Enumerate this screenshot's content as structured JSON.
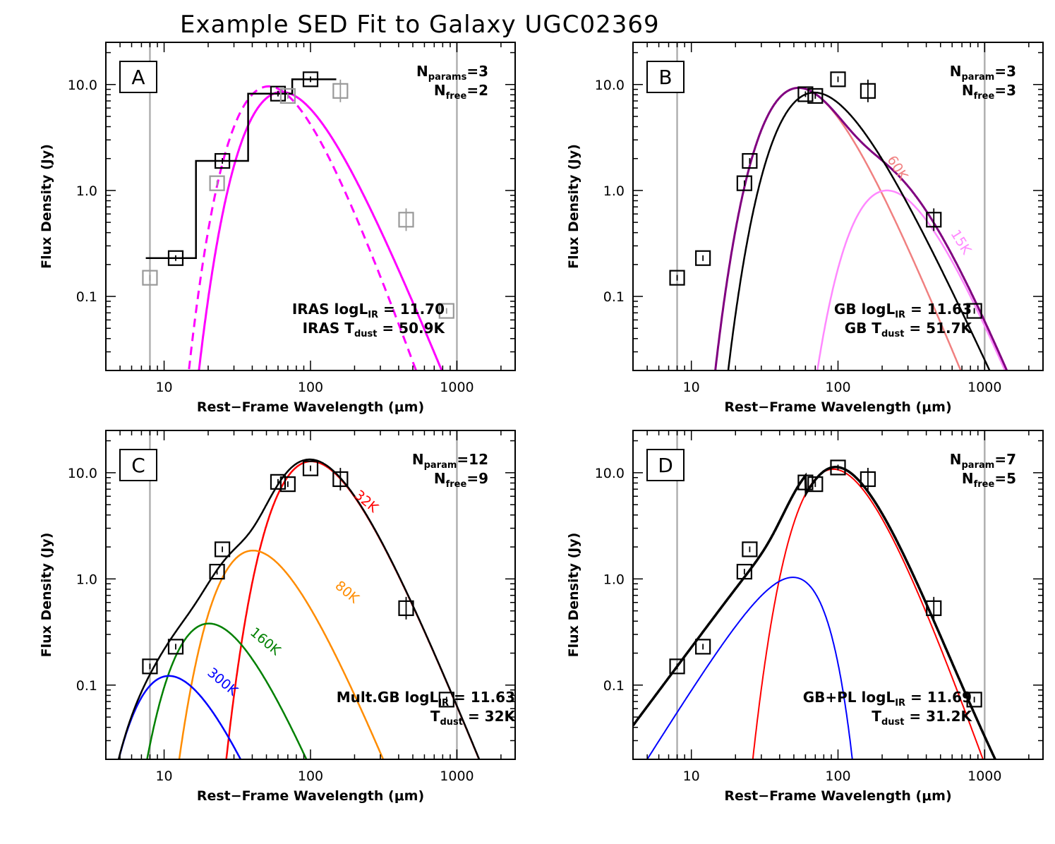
{
  "title": "Example SED Fit to Galaxy UGC02369",
  "chart_data": [
    {
      "type": "line",
      "panel": "A",
      "xlabel": "Rest−Frame Wavelength (μm)",
      "ylabel": "Flux Density (Jy)",
      "xscale": "log",
      "yscale": "log",
      "xlim": [
        4,
        2500
      ],
      "ylim": [
        0.02,
        25
      ],
      "xticks": [
        10,
        100,
        1000
      ],
      "xtick_labels": [
        "10",
        "100",
        "1000"
      ],
      "yticks": [
        0.1,
        1.0,
        10.0
      ],
      "ytick_labels": [
        "0.1",
        "1.0",
        "10.0"
      ],
      "vlines": [
        8,
        1000
      ],
      "params": {
        "n_label": "N",
        "n_sub": "params",
        "n_val": "=3",
        "f_label": "N",
        "f_sub": "free",
        "f_val": "=2"
      },
      "annotation": [
        {
          "pre": "IRAS logL",
          "sub": "IR",
          "post": " = 11.70"
        },
        {
          "pre": "IRAS T",
          "sub": "dust",
          "post": " = 50.9K"
        }
      ],
      "points": [
        {
          "x": 8,
          "y": 0.15,
          "color": "#999999"
        },
        {
          "x": 12,
          "y": 0.23,
          "color": "#000000"
        },
        {
          "x": 23,
          "y": 1.17,
          "color": "#999999"
        },
        {
          "x": 25,
          "y": 1.9,
          "color": "#000000"
        },
        {
          "x": 60,
          "y": 8.2,
          "color": "#000000"
        },
        {
          "x": 70,
          "y": 7.8,
          "color": "#999999"
        },
        {
          "x": 100,
          "y": 11.2,
          "color": "#000000"
        },
        {
          "x": 160,
          "y": 8.7,
          "color": "#999999"
        },
        {
          "x": 450,
          "y": 0.53,
          "color": "#999999"
        },
        {
          "x": 850,
          "y": 0.073,
          "color": "#999999"
        }
      ],
      "step": [
        [
          7.5,
          0.23
        ],
        [
          16.5,
          0.23
        ],
        [
          16.5,
          1.9
        ],
        [
          37.5,
          1.9
        ],
        [
          37.5,
          8.2
        ],
        [
          75,
          8.2
        ],
        [
          75,
          11.2
        ],
        [
          150,
          11.2
        ]
      ],
      "curves": [
        {
          "kind": "gb",
          "T": 50.9,
          "beta": 1.5,
          "peak": 8.5,
          "color": "#ff00ff",
          "dash": false,
          "width": 3
        },
        {
          "kind": "gb",
          "T": 56,
          "beta": 2.0,
          "peak": 9.6,
          "color": "#ff00ff",
          "dash": true,
          "width": 3
        }
      ],
      "curve_labels": []
    },
    {
      "type": "line",
      "panel": "B",
      "xlabel": "Rest−Frame Wavelength (μm)",
      "ylabel": "Flux Density (Jy)",
      "xscale": "log",
      "yscale": "log",
      "xlim": [
        4,
        2500
      ],
      "ylim": [
        0.02,
        25
      ],
      "xticks": [
        10,
        100,
        1000
      ],
      "xtick_labels": [
        "10",
        "100",
        "1000"
      ],
      "yticks": [
        0.1,
        1.0,
        10.0
      ],
      "ytick_labels": [
        "0.1",
        "1.0",
        "10.0"
      ],
      "vlines": [
        8,
        1000
      ],
      "params": {
        "n_label": "N",
        "n_sub": "param",
        "n_val": "=3",
        "f_label": "N",
        "f_sub": "free",
        "f_val": "=3"
      },
      "annotation": [
        {
          "pre": "GB logL",
          "sub": "IR",
          "post": " = 11.63"
        },
        {
          "pre": "GB T",
          "sub": "dust",
          "post": " = 51.7K"
        }
      ],
      "points": [
        {
          "x": 8,
          "y": 0.15,
          "color": "#000000"
        },
        {
          "x": 12,
          "y": 0.23,
          "color": "#000000"
        },
        {
          "x": 23,
          "y": 1.17,
          "color": "#000000"
        },
        {
          "x": 25,
          "y": 1.9,
          "color": "#000000"
        },
        {
          "x": 60,
          "y": 8.1,
          "color": "#000000"
        },
        {
          "x": 70,
          "y": 7.8,
          "color": "#000000"
        },
        {
          "x": 100,
          "y": 11.2,
          "color": "#000000"
        },
        {
          "x": 160,
          "y": 8.7,
          "color": "#000000"
        },
        {
          "x": 450,
          "y": 0.53,
          "color": "#000000"
        },
        {
          "x": 850,
          "y": 0.073,
          "color": "#000000"
        }
      ],
      "step": [],
      "curves": [
        {
          "kind": "gb",
          "T": 60,
          "beta": 1.5,
          "peak": 9.3,
          "color": "#f08080",
          "dash": false,
          "width": 2.5
        },
        {
          "kind": "gb",
          "T": 15,
          "beta": 1.5,
          "peak": 1.0,
          "color": "#ff88ff",
          "dash": false,
          "width": 2.5
        },
        {
          "kind": "sum",
          "of": [
            0,
            1
          ],
          "color": "#800080",
          "dash": false,
          "width": 3
        },
        {
          "kind": "gb",
          "T": 51.7,
          "beta": 1.1,
          "peak": 8.4,
          "color": "#000000",
          "dash": false,
          "width": 2.5
        }
      ],
      "curve_labels": [
        {
          "text": "60K",
          "x": 240,
          "y": 1.55,
          "color": "#f08080",
          "rotate": 58
        },
        {
          "text": "15K",
          "x": 650,
          "y": 0.31,
          "color": "#ff88ff",
          "rotate": 58
        }
      ]
    },
    {
      "type": "line",
      "panel": "C",
      "xlabel": "Rest−Frame Wavelength (μm)",
      "ylabel": "Flux Density (Jy)",
      "xscale": "log",
      "yscale": "log",
      "xlim": [
        4,
        2500
      ],
      "ylim": [
        0.02,
        25
      ],
      "xticks": [
        10,
        100,
        1000
      ],
      "xtick_labels": [
        "10",
        "100",
        "1000"
      ],
      "yticks": [
        0.1,
        1.0,
        10.0
      ],
      "ytick_labels": [
        "0.1",
        "1.0",
        "10.0"
      ],
      "vlines": [
        8,
        1000
      ],
      "params": {
        "n_label": "N",
        "n_sub": "param",
        "n_val": "=12",
        "f_label": "N",
        "f_sub": "free",
        "f_val": "=9"
      },
      "annotation": [
        {
          "pre": "Mult.GB logL",
          "sub": "IR",
          "post": " = 11.63"
        },
        {
          "pre": "T",
          "sub": "dust",
          "post": " = 32K"
        }
      ],
      "points": [
        {
          "x": 8,
          "y": 0.15,
          "color": "#000000"
        },
        {
          "x": 12,
          "y": 0.23,
          "color": "#000000"
        },
        {
          "x": 23,
          "y": 1.17,
          "color": "#000000"
        },
        {
          "x": 25,
          "y": 1.9,
          "color": "#000000"
        },
        {
          "x": 60,
          "y": 8.2,
          "color": "#000000"
        },
        {
          "x": 70,
          "y": 7.8,
          "color": "#000000"
        },
        {
          "x": 100,
          "y": 11.0,
          "color": "#000000"
        },
        {
          "x": 160,
          "y": 8.7,
          "color": "#000000"
        },
        {
          "x": 450,
          "y": 0.53,
          "color": "#000000"
        },
        {
          "x": 850,
          "y": 0.073,
          "color": "#000000"
        }
      ],
      "step": [],
      "curves": [
        {
          "kind": "gb",
          "T": 32,
          "beta": 1.5,
          "peak": 12.8,
          "color": "#ff0000",
          "dash": false,
          "width": 2.5
        },
        {
          "kind": "gb",
          "T": 80,
          "beta": 1.5,
          "peak": 1.85,
          "color": "#ff8c00",
          "dash": false,
          "width": 2.5
        },
        {
          "kind": "gb",
          "T": 160,
          "beta": 1.5,
          "peak": 0.38,
          "color": "#008000",
          "dash": false,
          "width": 2.5
        },
        {
          "kind": "gb",
          "T": 300,
          "beta": 1.5,
          "peak": 0.122,
          "color": "#0000ff",
          "dash": false,
          "width": 2.5
        },
        {
          "kind": "sum",
          "of": [
            0,
            1,
            2,
            3
          ],
          "color": "#000000",
          "dash": false,
          "width": 2.5
        }
      ],
      "curve_labels": [
        {
          "text": "32K",
          "x": 230,
          "y": 5.0,
          "color": "#ff0000",
          "rotate": 40
        },
        {
          "text": "80K",
          "x": 170,
          "y": 0.7,
          "color": "#ff8c00",
          "rotate": 40
        },
        {
          "text": "160K",
          "x": 47,
          "y": 0.24,
          "color": "#008000",
          "rotate": 40
        },
        {
          "text": "300K",
          "x": 24,
          "y": 0.1,
          "color": "#0000ff",
          "rotate": 40
        }
      ]
    },
    {
      "type": "line",
      "panel": "D",
      "xlabel": "Rest−Frame Wavelength (μm)",
      "ylabel": "Flux Density (Jy)",
      "xscale": "log",
      "yscale": "log",
      "xlim": [
        4,
        2500
      ],
      "ylim": [
        0.02,
        25
      ],
      "xticks": [
        10,
        100,
        1000
      ],
      "xtick_labels": [
        "10",
        "100",
        "1000"
      ],
      "yticks": [
        0.1,
        1.0,
        10.0
      ],
      "ytick_labels": [
        "0.1",
        "1.0",
        "10.0"
      ],
      "vlines": [
        8,
        1000
      ],
      "params": {
        "n_label": "N",
        "n_sub": "param",
        "n_val": "=7",
        "f_label": "N",
        "f_sub": "free",
        "f_val": "=5"
      },
      "annotation": [
        {
          "pre": "GB+PL logL",
          "sub": "IR",
          "post": " = 11.69"
        },
        {
          "pre": "T",
          "sub": "dust",
          "post": " = 31.2K"
        }
      ],
      "points": [
        {
          "x": 8,
          "y": 0.15,
          "color": "#000000"
        },
        {
          "x": 12,
          "y": 0.23,
          "color": "#000000"
        },
        {
          "x": 23,
          "y": 1.17,
          "color": "#000000"
        },
        {
          "x": 25,
          "y": 1.9,
          "color": "#000000"
        },
        {
          "x": 60,
          "y": 8.1,
          "color": "#000000"
        },
        {
          "x": 70,
          "y": 7.8,
          "color": "#000000"
        },
        {
          "x": 100,
          "y": 11.2,
          "color": "#000000"
        },
        {
          "x": 160,
          "y": 8.7,
          "color": "#000000"
        },
        {
          "x": 450,
          "y": 0.53,
          "color": "#000000"
        },
        {
          "x": 850,
          "y": 0.073,
          "color": "#000000"
        }
      ],
      "step": [],
      "curves": [
        {
          "kind": "gb",
          "T": 31.2,
          "beta": 2.0,
          "peak": 10.8,
          "color": "#ff0000",
          "dash": false,
          "width": 2
        },
        {
          "kind": "gbpl",
          "T": 31.2,
          "beta": 2.0,
          "peak": 10.8,
          "alpha": 2.2,
          "color": "#000000",
          "dash": false,
          "width": 3.5
        },
        {
          "kind": "pl",
          "alpha": 2.2,
          "xc": 47,
          "peak": 2.8,
          "color": "#0000ff",
          "dash": false,
          "width": 2
        }
      ],
      "curve_labels": []
    }
  ]
}
